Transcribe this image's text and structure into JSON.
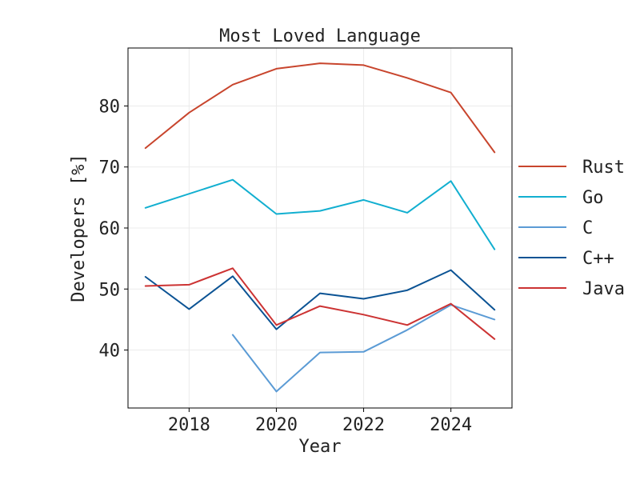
{
  "chart_data": {
    "type": "line",
    "title": "Most Loved Language",
    "xlabel": "Year",
    "ylabel": "Developers [%]",
    "xlim": [
      2016.6,
      2025.4
    ],
    "ylim": [
      30.5,
      89.5
    ],
    "grid": true,
    "legend_position": "right",
    "x_ticks": [
      2018,
      2020,
      2022,
      2024
    ],
    "y_ticks": [
      40,
      50,
      60,
      70,
      80
    ],
    "series": [
      {
        "name": "Rust",
        "color": "#c8452d",
        "x": [
          2017,
          2018,
          2019,
          2020,
          2021,
          2022,
          2023,
          2024,
          2025
        ],
        "values": [
          73.1,
          78.9,
          83.5,
          86.1,
          87.0,
          86.7,
          84.6,
          82.2,
          72.4
        ]
      },
      {
        "name": "Go",
        "color": "#12afd0",
        "x": [
          2017,
          2019,
          2020,
          2021,
          2022,
          2023,
          2024,
          2025
        ],
        "values": [
          63.3,
          67.9,
          62.3,
          62.8,
          64.6,
          62.5,
          67.7,
          56.5
        ]
      },
      {
        "name": "C",
        "color": "#5b9bd5",
        "x": [
          2019,
          2020,
          2021,
          2022,
          2023,
          2024,
          2025
        ],
        "values": [
          42.5,
          33.2,
          39.6,
          39.7,
          43.3,
          47.4,
          45.0
        ]
      },
      {
        "name": "C++",
        "color": "#0b5394",
        "x": [
          2017,
          2018,
          2019,
          2020,
          2021,
          2022,
          2023,
          2024,
          2025
        ],
        "values": [
          52.0,
          46.7,
          52.1,
          43.4,
          49.3,
          48.4,
          49.8,
          53.1,
          46.6
        ]
      },
      {
        "name": "Java",
        "color": "#cc3333",
        "x": [
          2017,
          2018,
          2019,
          2020,
          2021,
          2022,
          2023,
          2024,
          2025
        ],
        "values": [
          50.5,
          50.7,
          53.4,
          44.1,
          47.2,
          45.8,
          44.1,
          47.6,
          41.8
        ]
      }
    ]
  }
}
